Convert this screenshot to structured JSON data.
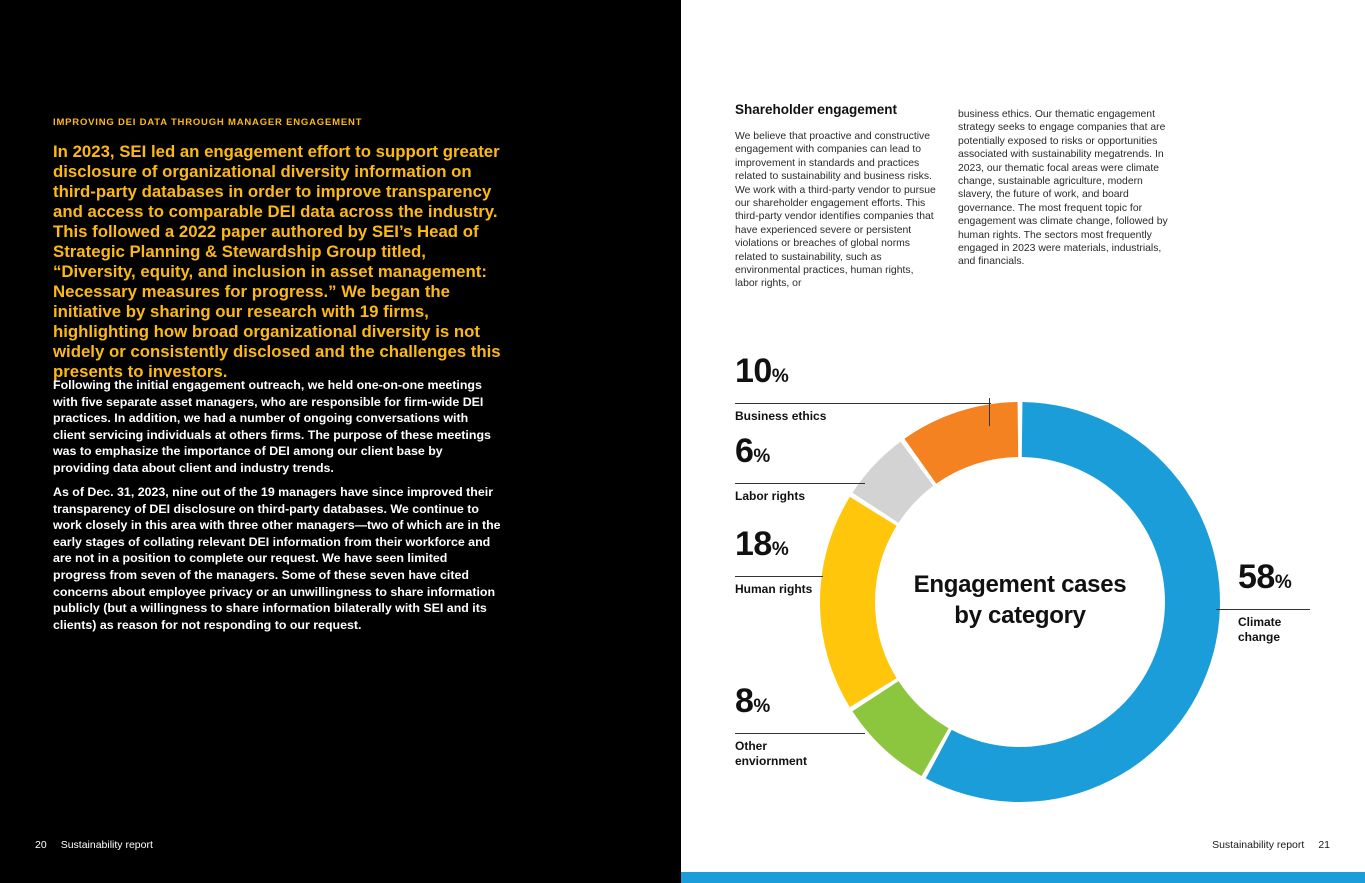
{
  "left_page": {
    "eyebrow": "IMPROVING DEI DATA THROUGH MANAGER ENGAGEMENT",
    "headline": "In 2023, SEI led an engagement effort to support greater disclosure of organizational diversity information on third-party databases in order to improve transparency and access to comparable DEI data across the industry. This followed a 2022 paper authored by SEI’s Head of Strategic Planning & Stewardship Group titled, “Diversity, equity, and inclusion in asset management: Necessary measures for progress.” We began the initiative by sharing our research with 19 firms, highlighting how broad organizational diversity is not widely or consistently disclosed and the challenges this presents to investors.",
    "para1": "Following the initial engagement outreach, we held one-on-one meetings with five separate asset managers, who are responsible for firm-wide DEI practices. In addition, we had a number of ongoing conversations with client servicing individuals at others firms. The purpose of these meetings was to emphasize the importance of DEI among our client base by providing data about client and industry trends.",
    "para2": "As of Dec. 31, 2023, nine out of the 19 managers have since improved their transparency of DEI disclosure on third-party databases. We continue to work closely in this area with three other managers—two of which are in the early stages of collating relevant DEI information from their workforce and are not in a position to complete our request. We have seen limited progress from seven of the managers. Some of these seven have cited concerns about employee privacy or an unwillingness to share information publicly (but a willingness to share information bilaterally with SEI and its clients) as reason for not responding to our request.",
    "footer_page": "20",
    "footer_label": "Sustainability report"
  },
  "right_page": {
    "heading": "Shareholder engagement",
    "col1": "We believe that proactive and constructive engagement with companies can lead to improvement in standards and practices related to sustainability and business risks. We work with a third-party vendor to pursue our shareholder engagement efforts. This third-party vendor identifies companies that have experienced severe or persistent violations or breaches of global norms related to sustainability, such as environmental practices, human rights, labor rights, or",
    "col2": "business ethics. Our thematic engagement strategy seeks to engage companies that are potentially exposed to risks or opportunities associated with sustainability megatrends. In 2023, our thematic focal areas were climate change, sustainable agriculture, modern slavery, the future of work, and board governance. The most frequent topic for engagement was climate change, followed by human rights. The sectors most frequently engaged in 2023 were materials, industrials, and financials.",
    "footer_label": "Sustainability report",
    "footer_page": "21"
  },
  "chart_data": {
    "type": "pie",
    "donut": true,
    "title": "Engagement cases by category",
    "center_label_lines": [
      "Engagement cases",
      "by category"
    ],
    "percent_sign": "%",
    "unit": "%",
    "start_angle_deg": 0,
    "direction": "clockwise",
    "segments": [
      {
        "label": "Climate change",
        "value": 58,
        "color": "#1b9dd9"
      },
      {
        "label": "Other enviornment",
        "value": 8,
        "color": "#8cc63f"
      },
      {
        "label": "Human rights",
        "value": 18,
        "color": "#ffc60b"
      },
      {
        "label": "Labor rights",
        "value": 6,
        "color": "#d3d3d3"
      },
      {
        "label": "Business ethics",
        "value": 10,
        "color": "#f58220"
      }
    ]
  },
  "colors": {
    "page_left_background": "#000000",
    "highlight_yellow": "#fdb913",
    "accent_bar": "#1b9dd9"
  }
}
